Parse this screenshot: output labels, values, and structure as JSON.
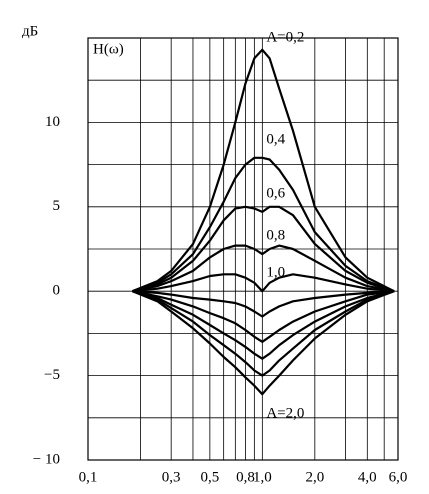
{
  "chart_data": {
    "type": "line",
    "y_label": "дБ",
    "annotation": "H(ω)",
    "xscale": "log",
    "x": [
      0.18,
      0.25,
      0.3,
      0.4,
      0.5,
      0.6,
      0.7,
      0.8,
      0.9,
      1.0,
      1.1,
      1.25,
      1.5,
      2,
      3,
      4,
      5.7
    ],
    "series": [
      {
        "name": "A=0,2",
        "color": "#000000",
        "values": [
          0,
          0.6,
          1.2,
          2.8,
          5,
          7.5,
          10,
          12.3,
          13.8,
          14.3,
          13.8,
          12,
          9.5,
          5,
          2,
          0.8,
          0
        ]
      },
      {
        "name": "0,4",
        "color": "#000000",
        "values": [
          0,
          0.5,
          1,
          2.2,
          3.8,
          5.3,
          6.7,
          7.5,
          7.9,
          7.9,
          7.8,
          7.2,
          6,
          3.5,
          1.5,
          0.6,
          0
        ]
      },
      {
        "name": "0,6",
        "color": "#000000",
        "values": [
          0,
          0.4,
          0.8,
          1.8,
          3,
          4.2,
          4.9,
          5,
          4.9,
          4.7,
          5,
          5,
          4.5,
          2.8,
          1.2,
          0.5,
          0
        ]
      },
      {
        "name": "0,8",
        "color": "#000000",
        "values": [
          0,
          0.3,
          0.6,
          1.2,
          2,
          2.5,
          2.7,
          2.7,
          2.5,
          2.2,
          2.5,
          2.7,
          2.5,
          1.8,
          0.8,
          0.3,
          0
        ]
      },
      {
        "name": "1,0",
        "color": "#000000",
        "values": [
          0,
          0.15,
          0.3,
          0.6,
          0.9,
          1,
          1,
          0.8,
          0.5,
          0,
          0.5,
          0.8,
          1,
          0.8,
          0.4,
          0.15,
          0
        ]
      },
      {
        "color": "#000000",
        "values": [
          0,
          -0.1,
          -0.2,
          -0.4,
          -0.5,
          -0.6,
          -0.7,
          -0.9,
          -1.2,
          -1.5,
          -1.2,
          -0.9,
          -0.6,
          -0.4,
          -0.2,
          -0.1,
          0
        ]
      },
      {
        "color": "#000000",
        "values": [
          0,
          -0.3,
          -0.5,
          -0.9,
          -1.3,
          -1.6,
          -1.9,
          -2.3,
          -2.7,
          -3,
          -2.7,
          -2.3,
          -1.8,
          -1.2,
          -0.6,
          -0.2,
          0
        ]
      },
      {
        "color": "#000000",
        "values": [
          0,
          -0.4,
          -0.8,
          -1.4,
          -2,
          -2.5,
          -2.9,
          -3.3,
          -3.7,
          -4,
          -3.7,
          -3.2,
          -2.6,
          -1.8,
          -0.9,
          -0.4,
          0
        ]
      },
      {
        "color": "#000000",
        "values": [
          0,
          -0.5,
          -1,
          -1.8,
          -2.6,
          -3.2,
          -3.7,
          -4.2,
          -4.7,
          -5,
          -4.7,
          -4.1,
          -3.4,
          -2.3,
          -1.2,
          -0.5,
          0
        ]
      },
      {
        "name": "A=2,0",
        "color": "#000000",
        "values": [
          0,
          -0.6,
          -1.2,
          -2.2,
          -3.1,
          -3.9,
          -4.5,
          -5.1,
          -5.6,
          -6.1,
          -5.6,
          -5,
          -4.1,
          -2.8,
          -1.4,
          -0.6,
          0
        ]
      }
    ],
    "xlim": [
      0.1,
      6
    ],
    "xticks": [
      {
        "value": 0.1,
        "label": "0,1"
      },
      {
        "value": 0.3,
        "label": "0,3"
      },
      {
        "value": 0.5,
        "label": "0,5"
      },
      {
        "value": 0.8,
        "label": "0,8"
      },
      {
        "value": 1.0,
        "label": "1,0"
      },
      {
        "value": 2.0,
        "label": "2,0"
      },
      {
        "value": 4.0,
        "label": "4,0"
      },
      {
        "value": 6.0,
        "label": "6,0"
      }
    ],
    "minor_xticks": [
      0.2,
      0.4,
      0.6,
      0.7,
      0.9,
      3,
      5
    ],
    "ylim": [
      -10,
      15
    ],
    "yticks": [
      {
        "value": -10,
        "label": "− 10"
      },
      {
        "value": -5,
        "label": "−5"
      },
      0,
      5,
      10
    ],
    "minor_yticks": [
      -7.5,
      -2.5,
      2.5,
      7.5,
      12.5
    ],
    "grid": true
  }
}
